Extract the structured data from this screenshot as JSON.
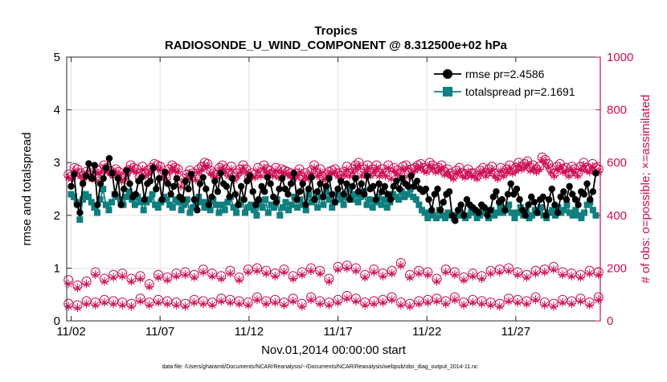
{
  "chart_data": {
    "type": "line",
    "title": "Tropics",
    "subtitle": "RADIOSONDE_U_WIND_COMPONENT @ 8.312500e+02 hPa",
    "xlabel": "Nov.01,2014 00:00:00 start",
    "ylabel_left": "rmse and totalspread",
    "ylabel_right": "# of obs: o=possible; ×=assimilated",
    "footnote": "data file: /Users/gharamti/Documents/NCAR/Reanalysis/~/Documents/NCAR/Reanalysis/webpub/obs_diag_output_2014-11.nc",
    "x_unit": "day offset from Nov.01,2014 00:00:00 (6-hourly)",
    "xlim": [
      0.75,
      30.75
    ],
    "ylim_left": [
      0,
      5
    ],
    "ylim_right": [
      0,
      1000
    ],
    "x_ticks": [
      {
        "value": 1,
        "label": "11/02"
      },
      {
        "value": 6,
        "label": "11/07"
      },
      {
        "value": 11,
        "label": "11/12"
      },
      {
        "value": 16,
        "label": "11/17"
      },
      {
        "value": 21,
        "label": "11/22"
      },
      {
        "value": 26,
        "label": "11/27"
      }
    ],
    "y_ticks_left": [
      0,
      1,
      2,
      3,
      4,
      5
    ],
    "y_ticks_right": [
      0,
      200,
      400,
      600,
      800,
      1000
    ],
    "legend": [
      {
        "name": "rmse pr=2.4586",
        "color": "#000000",
        "marker": "circle"
      },
      {
        "name": "totalspread pr=2.1691",
        "color": "#0f7f7f",
        "marker": "square"
      }
    ],
    "series": [
      {
        "name": "rmse",
        "axis": "left",
        "color": "#000000",
        "values": [
          2.55,
          2.78,
          2.2,
          2.05,
          2.6,
          2.75,
          2.98,
          2.7,
          2.95,
          2.2,
          2.6,
          2.7,
          2.9,
          3.08,
          2.8,
          2.4,
          2.7,
          2.2,
          2.5,
          2.85,
          2.6,
          2.35,
          2.4,
          2.65,
          2.72,
          2.3,
          2.6,
          2.65,
          2.9,
          2.5,
          2.7,
          2.3,
          2.82,
          2.6,
          2.4,
          2.55,
          2.7,
          2.35,
          2.3,
          2.65,
          2.5,
          2.78,
          2.3,
          2.1,
          2.6,
          2.72,
          2.5,
          2.2,
          2.35,
          2.65,
          2.45,
          2.8,
          2.6,
          2.55,
          2.35,
          2.7,
          2.4,
          2.2,
          2.55,
          2.3,
          2.65,
          2.75,
          2.45,
          2.2,
          2.3,
          2.55,
          2.45,
          2.72,
          2.6,
          2.35,
          2.25,
          2.5,
          2.7,
          2.5,
          2.4,
          2.6,
          2.8,
          2.3,
          2.45,
          2.6,
          2.2,
          2.5,
          2.72,
          2.3,
          2.45,
          2.6,
          2.35,
          2.55,
          2.7,
          2.4,
          2.25,
          2.5,
          2.65,
          2.4,
          2.6,
          2.3,
          2.55,
          2.7,
          2.45,
          2.6,
          2.4,
          2.75,
          2.5,
          2.55,
          2.3,
          2.6,
          2.45,
          2.55,
          2.4,
          2.3,
          2.55,
          2.65,
          2.5,
          2.7,
          2.6,
          2.55,
          2.75,
          2.55,
          2.65,
          2.5,
          2.45,
          2.5,
          2.3,
          2.1,
          2.4,
          2.5,
          2.1,
          2.25,
          2.4,
          2.45,
          2.0,
          1.9,
          2.1,
          2.2,
          2.0,
          2.3,
          2.2,
          2.15,
          2.1,
          2.05,
          2.2,
          2.15,
          2.0,
          2.1,
          2.35,
          2.45,
          2.25,
          2.3,
          2.1,
          2.4,
          2.6,
          2.4,
          2.5,
          2.3,
          2.1,
          2.0,
          2.2,
          2.35,
          2.25,
          2.05,
          2.3,
          2.35,
          2.0,
          2.3,
          2.5,
          2.2,
          2.05,
          2.35,
          2.45,
          2.3,
          2.55,
          2.4,
          2.3,
          2.2,
          2.45,
          2.4,
          2.6,
          2.3,
          2.45,
          2.8
        ]
      },
      {
        "name": "totalspread",
        "axis": "left",
        "color": "#0f7f7f",
        "values": [
          2.4,
          2.35,
          2.25,
          1.92,
          2.3,
          2.4,
          2.35,
          2.25,
          2.15,
          2.05,
          2.3,
          2.5,
          2.2,
          2.1,
          2.25,
          2.4,
          2.35,
          2.3,
          2.2,
          2.35,
          2.45,
          2.3,
          2.2,
          2.35,
          2.25,
          2.1,
          2.25,
          2.3,
          2.4,
          2.2,
          2.15,
          2.25,
          2.35,
          2.3,
          2.2,
          2.15,
          2.3,
          2.25,
          2.1,
          2.2,
          2.3,
          2.05,
          2.15,
          2.2,
          2.35,
          2.25,
          2.15,
          2.25,
          2.1,
          2.3,
          2.2,
          2.05,
          2.2,
          2.1,
          2.25,
          2.35,
          2.15,
          2.05,
          2.2,
          2.3,
          2.05,
          2.15,
          2.2,
          2.1,
          2.0,
          2.25,
          2.15,
          2.3,
          2.05,
          2.2,
          2.15,
          2.3,
          2.0,
          2.15,
          2.25,
          2.1,
          2.2,
          2.35,
          2.15,
          2.3,
          2.2,
          2.1,
          2.4,
          2.25,
          2.3,
          2.15,
          2.35,
          2.2,
          2.45,
          2.3,
          2.15,
          2.25,
          2.4,
          2.3,
          2.2,
          2.35,
          2.5,
          2.3,
          2.4,
          2.25,
          2.35,
          2.45,
          2.2,
          2.3,
          2.15,
          2.25,
          2.35,
          2.2,
          2.3,
          2.15,
          2.25,
          2.4,
          2.35,
          2.3,
          2.45,
          2.35,
          2.4,
          2.5,
          2.35,
          2.3,
          2.2,
          2.1,
          2.05,
          1.95,
          2.05,
          2.0,
          1.95,
          2.1,
          2.0,
          1.95,
          2.05,
          2.0,
          1.95,
          2.0,
          2.05,
          2.0,
          1.95,
          2.0,
          2.1,
          2.05,
          1.95,
          2.0,
          2.1,
          2.05,
          1.95,
          2.1,
          2.0,
          2.05,
          2.15,
          2.05,
          2.1,
          2.2,
          2.05,
          1.95,
          2.05,
          2.15,
          2.0,
          2.1,
          1.95,
          2.0,
          2.1,
          2.05,
          2.15,
          2.0,
          1.95,
          2.05,
          2.1,
          2.0,
          2.15,
          2.05,
          2.1,
          2.2,
          2.05,
          2.0,
          2.1,
          2.0,
          1.95,
          2.05,
          2.2,
          2.25,
          2.1,
          2.0
        ]
      },
      {
        "name": "possible",
        "axis": "right",
        "color": "#cc0d55",
        "marker": "open-circle",
        "values": [
          555,
          548,
          580,
          575,
          560,
          550,
          565,
          555,
          560,
          545,
          570,
          575,
          590,
          580,
          570,
          560,
          575,
          565,
          540,
          550,
          570,
          590,
          580,
          575,
          545,
          585,
          560,
          570,
          580,
          595,
          590,
          585,
          560,
          545,
          575,
          590,
          580,
          575,
          520,
          540,
          555,
          570,
          560,
          545,
          575,
          585,
          600,
          595,
          570,
          560,
          555,
          580,
          590,
          575,
          560,
          585,
          545,
          560,
          575,
          590,
          575,
          545,
          560,
          555,
          580,
          560,
          590,
          575,
          570,
          560,
          580,
          555,
          575,
          570,
          565,
          560,
          550,
          560,
          575,
          545,
          560,
          550,
          570,
          590,
          560,
          575,
          545,
          555,
          565,
          570,
          575,
          560,
          550,
          565,
          585,
          560,
          575,
          590,
          600,
          560,
          575,
          590,
          560,
          575,
          590,
          560,
          575,
          560,
          590,
          550,
          580,
          570,
          560,
          585,
          590,
          560,
          575,
          580,
          590,
          595,
          580,
          575,
          600,
          590,
          575,
          580,
          590,
          565,
          575,
          560,
          550,
          570,
          580,
          560,
          555,
          575,
          560,
          560,
          550,
          570,
          580,
          560,
          575,
          585,
          560,
          550,
          580,
          560,
          575,
          590,
          570,
          580,
          600,
          585,
          595,
          605,
          580,
          590,
          575,
          585,
          620,
          610,
          595,
          575,
          560,
          585,
          595,
          575,
          580,
          560,
          585,
          575,
          560,
          585,
          600,
          580,
          575,
          595,
          580,
          575
        ]
      },
      {
        "name": "assimilated",
        "axis": "right",
        "color": "#cc0d55",
        "marker": "asterisk",
        "values": [
          545,
          540,
          570,
          565,
          550,
          540,
          555,
          545,
          550,
          535,
          560,
          565,
          580,
          570,
          560,
          550,
          565,
          555,
          530,
          540,
          560,
          580,
          570,
          565,
          535,
          575,
          550,
          560,
          570,
          585,
          580,
          575,
          550,
          535,
          565,
          580,
          570,
          565,
          510,
          530,
          545,
          560,
          550,
          535,
          565,
          575,
          590,
          585,
          560,
          550,
          545,
          570,
          580,
          565,
          550,
          575,
          535,
          550,
          565,
          580,
          565,
          535,
          550,
          545,
          570,
          550,
          580,
          565,
          560,
          550,
          570,
          545,
          565,
          560,
          555,
          550,
          540,
          550,
          565,
          535,
          550,
          540,
          560,
          580,
          550,
          565,
          535,
          545,
          555,
          560,
          565,
          550,
          540,
          555,
          575,
          550,
          565,
          580,
          590,
          550,
          565,
          580,
          550,
          565,
          580,
          550,
          565,
          550,
          580,
          540,
          570,
          560,
          550,
          575,
          580,
          550,
          565,
          570,
          580,
          585,
          570,
          565,
          590,
          580,
          565,
          570,
          580,
          555,
          565,
          550,
          540,
          560,
          570,
          550,
          545,
          565,
          550,
          550,
          540,
          560,
          570,
          550,
          565,
          575,
          550,
          540,
          570,
          550,
          565,
          580,
          560,
          570,
          590,
          575,
          585,
          595,
          570,
          580,
          565,
          575,
          610,
          600,
          585,
          565,
          550,
          575,
          585,
          565,
          570,
          550,
          575,
          565,
          550,
          575,
          590,
          570,
          565,
          585,
          570,
          565
        ]
      },
      {
        "name": "possible_upper_band",
        "axis": "right",
        "color": "#cc0d55",
        "marker": "open-circle",
        "values": [
          155,
          135,
          150,
          185,
          160,
          175,
          180,
          160,
          170,
          140,
          175,
          165,
          180,
          185,
          175,
          195,
          180,
          170,
          190,
          165,
          195,
          200,
          190,
          180,
          195,
          170,
          185,
          200,
          190,
          160,
          205,
          210,
          200,
          175,
          195,
          180,
          190,
          220,
          175,
          190,
          185,
          160,
          195,
          185,
          165,
          180,
          170,
          190,
          195,
          200,
          185,
          175,
          190,
          195,
          205,
          185,
          180,
          175,
          190,
          185
        ]
      },
      {
        "name": "assimilated_upper_band",
        "axis": "right",
        "color": "#cc0d55",
        "marker": "asterisk",
        "values": [
          140,
          125,
          140,
          175,
          150,
          165,
          170,
          150,
          160,
          130,
          165,
          155,
          170,
          175,
          165,
          185,
          170,
          160,
          180,
          155,
          185,
          190,
          180,
          170,
          185,
          160,
          175,
          190,
          180,
          150,
          195,
          200,
          190,
          165,
          185,
          170,
          180,
          210,
          165,
          180,
          175,
          150,
          185,
          175,
          155,
          170,
          160,
          180,
          185,
          190,
          175,
          165,
          180,
          185,
          195,
          175,
          170,
          165,
          180,
          175
        ]
      },
      {
        "name": "possible_lower_band",
        "axis": "right",
        "color": "#cc0d55",
        "marker": "open-circle",
        "values": [
          65,
          60,
          75,
          70,
          80,
          75,
          70,
          65,
          85,
          70,
          80,
          75,
          70,
          65,
          80,
          75,
          70,
          85,
          80,
          75,
          70,
          90,
          75,
          80,
          70,
          85,
          65,
          90,
          75,
          70,
          80,
          95,
          85,
          70,
          75,
          80,
          90,
          70,
          65,
          75,
          80,
          85,
          75,
          90,
          70,
          80,
          75,
          70,
          65,
          85,
          80,
          75,
          90,
          70,
          65,
          80,
          75,
          85,
          70,
          90
        ]
      },
      {
        "name": "assimilated_lower_band",
        "axis": "right",
        "color": "#cc0d55",
        "marker": "asterisk",
        "values": [
          55,
          50,
          65,
          60,
          70,
          65,
          60,
          55,
          75,
          60,
          70,
          65,
          60,
          55,
          70,
          65,
          60,
          75,
          70,
          65,
          60,
          80,
          65,
          70,
          60,
          75,
          55,
          80,
          65,
          60,
          70,
          85,
          75,
          60,
          65,
          70,
          80,
          60,
          55,
          65,
          70,
          75,
          65,
          80,
          60,
          70,
          65,
          60,
          55,
          75,
          70,
          65,
          80,
          60,
          55,
          70,
          65,
          75,
          60,
          80
        ]
      }
    ]
  }
}
